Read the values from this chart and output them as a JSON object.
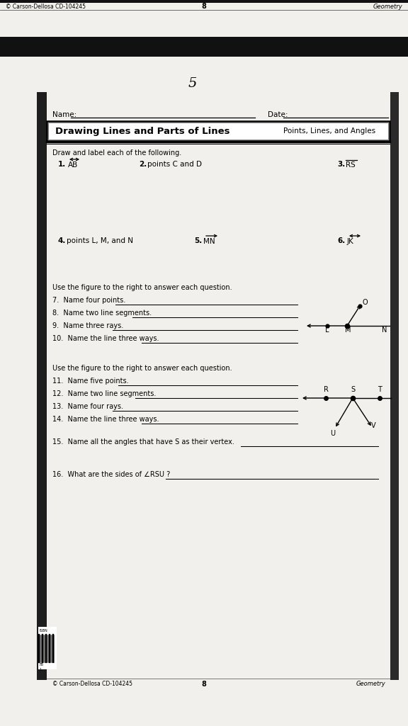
{
  "bg_outer": "#d0cdc8",
  "bg_paper": "#f2f0ec",
  "bg_dark_band": "#1a1a1a",
  "left_strip": "#2a2525",
  "right_strip": "#3a3535",
  "copyright_top": "© Carson-Dellosa CD-104245",
  "page_num_top": "8",
  "geometry_top": "Geometry",
  "page_number": "5",
  "name_label": "Name:",
  "date_label": "Date:",
  "instruction": "Draw and label each of the following.",
  "title_left": "Drawing Lines and Parts of Lines",
  "title_right": "Points, Lines, and Angles",
  "item1_num": "1.",
  "item1_text": "AB",
  "item2_num": "2.",
  "item2_text": "points C and D",
  "item3_num": "3.",
  "item3_text": "RS",
  "item4_num": "4.",
  "item4_text": "points L, M, and N",
  "item5_num": "5.",
  "item5_text": "MN",
  "item6_num": "6.",
  "item6_text": "JK",
  "section2_intro": "Use the figure to the right to answer each question.",
  "q7": "7.  Name four points.",
  "q8": "8.  Name two line segments.",
  "q9": "9.  Name three rays.",
  "q10": "10.  Name the line three ways.",
  "section3_intro": "Use the figure to the right to answer each question.",
  "q11": "11.  Name five points.",
  "q12": "12.  Name two line segments.",
  "q13": "13.  Name four rays.",
  "q14": "14.  Name the line three ways.",
  "q15": "15.  Name all the angles that have S as their vertex.",
  "q16": "16.  What are the sides of ∠RSU ?",
  "copyright_bottom": "© Carson-Dellosa CD-104245",
  "page_num_bottom": "8",
  "geometry_bottom": "Geometry"
}
